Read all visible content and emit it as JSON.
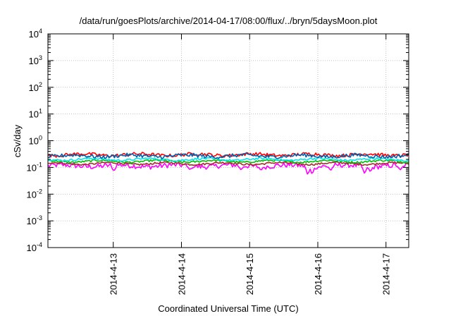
{
  "chart_data": {
    "type": "line",
    "title": "/data/run/goesPlots/archive/2014-04-17/08:00/flux/../bryn/5daysMoon.plot",
    "xlabel": "Coordinated Universal Time (UTC)",
    "ylabel": "cSv/day",
    "y_scale": "log",
    "ylim": [
      0.0001,
      10000
    ],
    "y_ticks": [
      {
        "value": 0.0001,
        "base": "10",
        "exp": "-4"
      },
      {
        "value": 0.001,
        "base": "10",
        "exp": "-3"
      },
      {
        "value": 0.01,
        "base": "10",
        "exp": "-2"
      },
      {
        "value": 0.1,
        "base": "10",
        "exp": "-1"
      },
      {
        "value": 1,
        "base": "10",
        "exp": "0"
      },
      {
        "value": 10,
        "base": "10",
        "exp": "1"
      },
      {
        "value": 100,
        "base": "10",
        "exp": "2"
      },
      {
        "value": 1000,
        "base": "10",
        "exp": "3"
      },
      {
        "value": 10000,
        "base": "10",
        "exp": "4"
      }
    ],
    "xlim": [
      "2014-04-12 01:00",
      "2014-04-17 08:00"
    ],
    "x_ticks": [
      {
        "value": "2014-04-13 00:00",
        "label": "2014-4-13"
      },
      {
        "value": "2014-04-14 00:00",
        "label": "2014-4-14"
      },
      {
        "value": "2014-04-15 00:00",
        "label": "2014-4-15"
      },
      {
        "value": "2014-04-16 00:00",
        "label": "2014-4-16"
      },
      {
        "value": "2014-04-17 00:00",
        "label": "2014-4-17"
      }
    ],
    "grid": true,
    "legend": "none",
    "series": [
      {
        "color": "#ff00ff",
        "level": 0.115,
        "noise": 0.22,
        "dips": [
          {
            "x": "2014-04-13 00:12",
            "value": 0.07
          },
          {
            "x": "2014-04-14 03:00",
            "value": 0.08
          },
          {
            "x": "2014-04-14 21:00",
            "value": 0.08
          },
          {
            "x": "2014-04-15 04:00",
            "value": 0.075
          },
          {
            "x": "2014-04-15 20:30",
            "value": 0.048
          },
          {
            "x": "2014-04-15 22:00",
            "value": 0.05
          },
          {
            "x": "2014-04-16 04:30",
            "value": 0.075
          },
          {
            "x": "2014-04-16 16:30",
            "value": 0.055
          },
          {
            "x": "2014-04-16 18:30",
            "value": 0.065
          },
          {
            "x": "2014-04-17 05:00",
            "value": 0.08
          }
        ]
      },
      {
        "color": "#a52a2a",
        "level": 0.14,
        "noise": 0.08
      },
      {
        "color": "#00c000",
        "level": 0.17,
        "noise": 0.08
      },
      {
        "color": "#00e5ee",
        "level": 0.2,
        "noise": 0.09
      },
      {
        "color": "#ff0000",
        "level": 0.3,
        "noise": 0.14
      },
      {
        "color": "#0060ad",
        "level": 0.27,
        "noise": 0.16
      }
    ]
  }
}
